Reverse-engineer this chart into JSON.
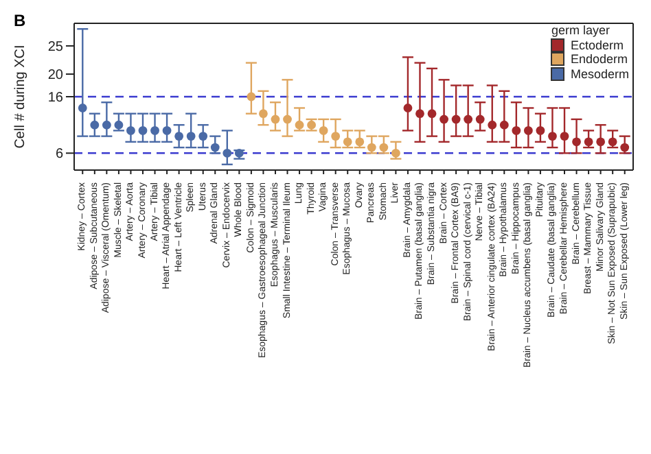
{
  "chart_data": {
    "type": "scatter",
    "annotations": [
      "B"
    ],
    "ylabel": "Cell # during XCI",
    "legend_title": "germ layer",
    "legend": "top right",
    "marker": "circle",
    "ylim": [
      3,
      29
    ],
    "yticks": [
      6,
      16,
      20,
      25
    ],
    "categories": [
      "Kidney – Cortex",
      "Adipose – Subcutaneous",
      "Adipose – Visceral (Omentum)",
      "Muscle – Skeletal",
      "Artery – Aorta",
      "Artery – Coronary",
      "Artery – Tibial",
      "Heart – Atrial Appendage",
      "Heart – Left Ventricle",
      "Spleen",
      "Uterus",
      "Adrenal Gland",
      "Cervix – Endocervix",
      "Whole Blood",
      "Colon – Sigmoid",
      "Esophagus – Gastroesophageal Junction",
      "Esophagus – Muscularis",
      "Small Intestine – Terminal Ileum",
      "Lung",
      "Thyroid",
      "Vagina",
      "Colon – Transverse",
      "Esophagus – Mucosa",
      "Ovary",
      "Pancreas",
      "Stomach",
      "Liver",
      "Brain – Amygdala",
      "Brain – Putamen (basal ganglia)",
      "Brain – Substantia nigra",
      "Brain – Cortex",
      "Brain – Frontal Cortex (BA9)",
      "Brain – Spinal cord (cervical c-1)",
      "Nerve – Tibial",
      "Brain – Anterior cingulate cortex (BA24)",
      "Brain – Hypothalamus",
      "Brain – Hippocampus",
      "Brain – Nucleus accumbens (basal ganglia)",
      "Pituitary",
      "Brain – Caudate (basal ganglia)",
      "Brain – Cerebellar Hemisphere",
      "Brain – Cerebellum",
      "Breast – Mammary Tissue",
      "Minor Salivary Gland",
      "Skin – Not Sun Exposed (Suprapubic)",
      "Skin – Sun Exposed (Lower leg)"
    ],
    "series": [
      {
        "name": "Ectoderm",
        "color": "#a3282b",
        "values": [
          null,
          null,
          null,
          null,
          null,
          null,
          null,
          null,
          null,
          null,
          null,
          null,
          null,
          null,
          null,
          null,
          null,
          null,
          null,
          null,
          null,
          null,
          null,
          null,
          null,
          null,
          null,
          14,
          13,
          13,
          12,
          12,
          12,
          12,
          11,
          11,
          10,
          10,
          10,
          9,
          9,
          8,
          8,
          8,
          8,
          7
        ],
        "errors": [
          null,
          null,
          null,
          null,
          null,
          null,
          null,
          null,
          null,
          null,
          null,
          null,
          null,
          null,
          null,
          null,
          null,
          null,
          null,
          null,
          null,
          null,
          null,
          null,
          null,
          null,
          null,
          [
            10,
            23
          ],
          [
            8,
            22
          ],
          [
            9,
            21
          ],
          [
            8,
            19
          ],
          [
            9,
            18
          ],
          [
            9,
            18
          ],
          [
            10,
            15
          ],
          [
            8,
            18
          ],
          [
            8,
            17
          ],
          [
            7,
            15
          ],
          [
            7,
            14
          ],
          [
            8,
            13
          ],
          [
            7,
            14
          ],
          [
            6,
            14
          ],
          [
            6,
            12
          ],
          [
            7,
            10
          ],
          [
            6,
            11
          ],
          [
            7,
            10
          ],
          [
            6,
            9
          ]
        ]
      },
      {
        "name": "Endoderm",
        "color": "#dfa65f",
        "values": [
          null,
          null,
          null,
          null,
          null,
          null,
          null,
          null,
          null,
          null,
          null,
          null,
          null,
          null,
          16,
          13,
          12,
          12,
          11,
          11,
          10,
          9,
          8,
          8,
          7,
          7,
          6,
          null,
          null,
          null,
          null,
          null,
          null,
          null,
          null,
          null,
          null,
          null,
          null,
          null,
          null,
          null,
          null,
          null,
          null,
          null
        ],
        "errors": [
          null,
          null,
          null,
          null,
          null,
          null,
          null,
          null,
          null,
          null,
          null,
          null,
          null,
          null,
          [
            13,
            22
          ],
          [
            11,
            17
          ],
          [
            10,
            15
          ],
          [
            9,
            19
          ],
          [
            10,
            14
          ],
          [
            10,
            12
          ],
          [
            8,
            12
          ],
          [
            7,
            12
          ],
          [
            7,
            10
          ],
          [
            7,
            10
          ],
          [
            6,
            9
          ],
          [
            6,
            9
          ],
          [
            5,
            8
          ],
          null,
          null,
          null,
          null,
          null,
          null,
          null,
          null,
          null,
          null,
          null,
          null,
          null,
          null,
          null,
          null,
          null,
          null,
          null
        ]
      },
      {
        "name": "Mesoderm",
        "color": "#4a6aa6",
        "values": [
          14,
          11,
          11,
          11,
          10,
          10,
          10,
          10,
          9,
          9,
          9,
          7,
          6,
          6,
          null,
          null,
          null,
          null,
          null,
          null,
          null,
          null,
          null,
          null,
          null,
          null,
          null,
          null,
          null,
          null,
          null,
          null,
          null,
          null,
          null,
          null,
          null,
          null,
          null,
          null,
          null,
          null,
          null,
          null,
          null,
          null
        ],
        "errors": [
          [
            9,
            28
          ],
          [
            9,
            13
          ],
          [
            9,
            15
          ],
          [
            10,
            13
          ],
          [
            8,
            13
          ],
          [
            8,
            13
          ],
          [
            8,
            13
          ],
          [
            8,
            13
          ],
          [
            7,
            11
          ],
          [
            7,
            13
          ],
          [
            7,
            11
          ],
          [
            6,
            9
          ],
          [
            4,
            10
          ],
          [
            5,
            6.5
          ],
          null,
          null,
          null,
          null,
          null,
          null,
          null,
          null,
          null,
          null,
          null,
          null,
          null,
          null,
          null,
          null,
          null,
          null,
          null,
          null,
          null,
          null,
          null,
          null,
          null,
          null,
          null,
          null,
          null,
          null,
          null,
          null
        ]
      }
    ],
    "ref_lines": [
      {
        "axis": "y",
        "value": 6,
        "color": "#3a3acf",
        "line_style": "dashed"
      },
      {
        "axis": "y",
        "value": 16,
        "color": "#3a3acf",
        "line_style": "dashed"
      }
    ]
  }
}
